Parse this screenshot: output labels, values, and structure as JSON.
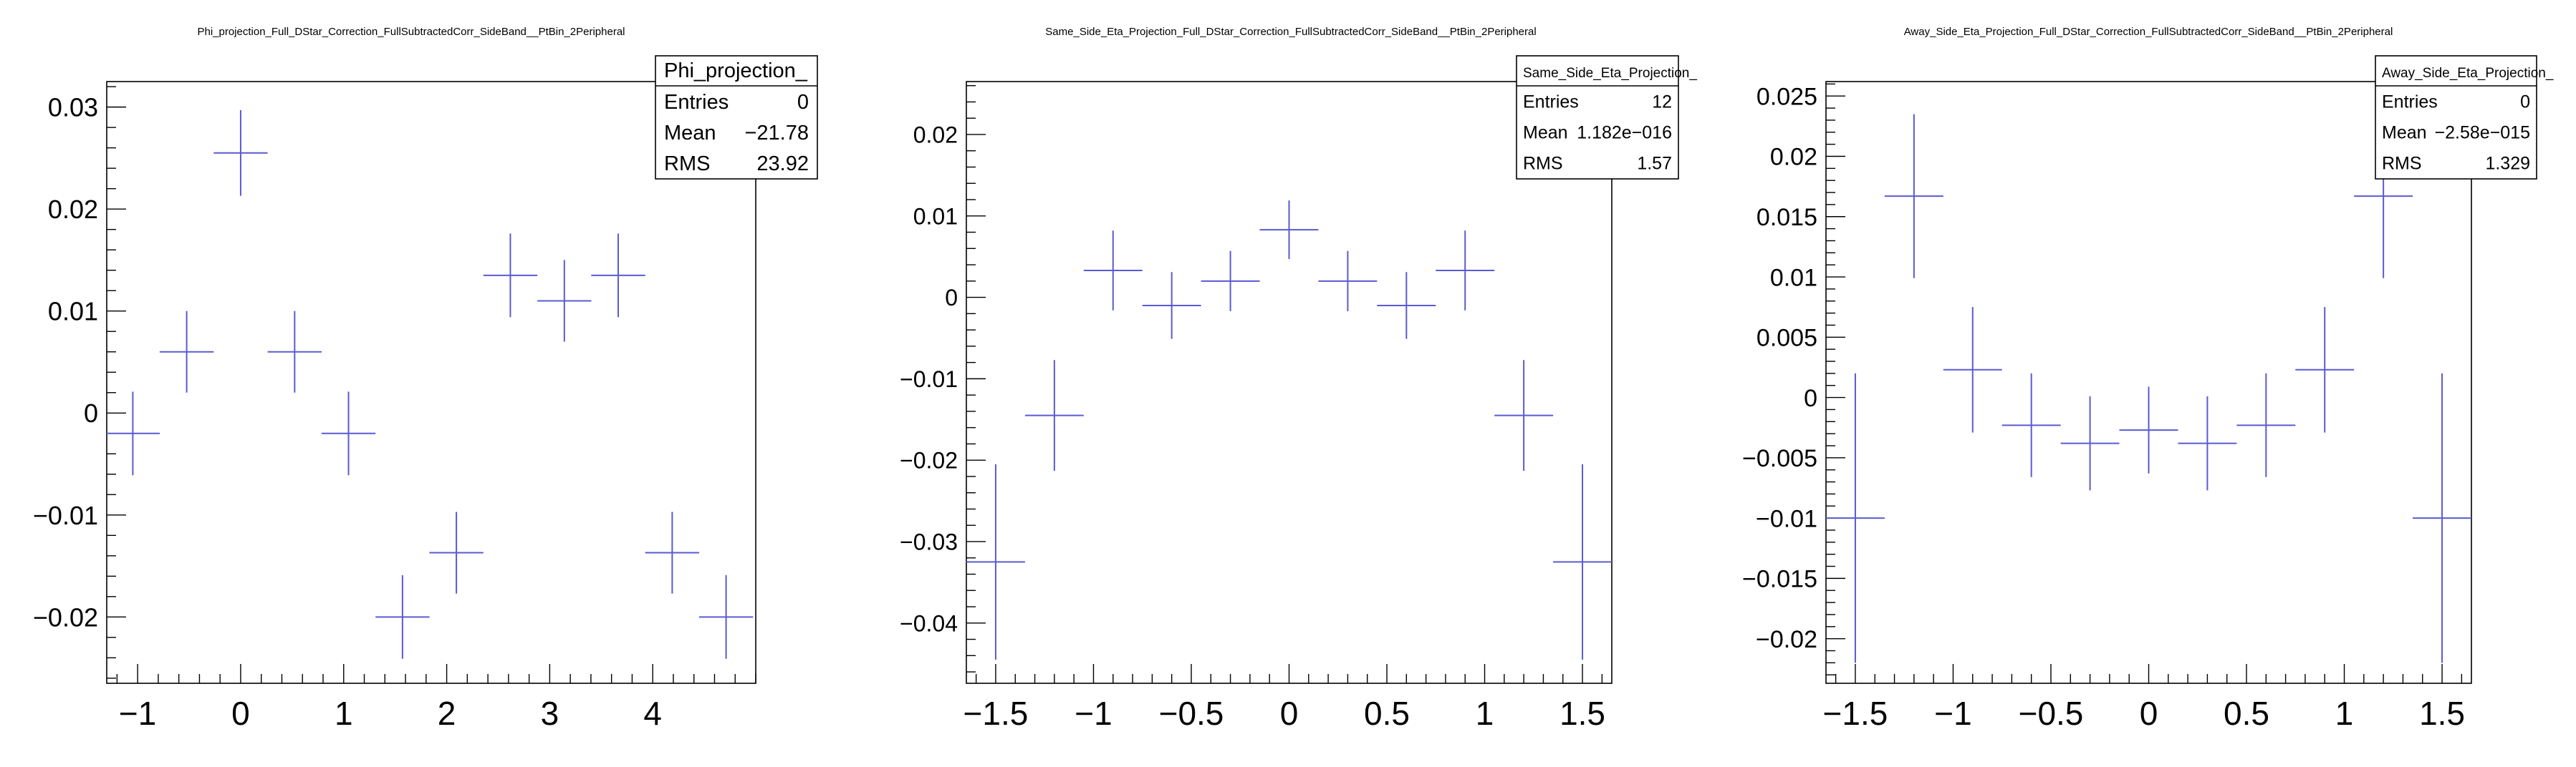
{
  "chart_data": [
    {
      "type": "scatter",
      "title": "Phi_projection_Full_DStar_Correction_FullSubtractedCorr_SideBand__PtBin_2Peripheral",
      "xlabel": "",
      "ylabel": "",
      "xlim": [
        -1.3,
        5.0
      ],
      "ylim": [
        -0.0265,
        0.0325
      ],
      "xticks": [
        -1,
        0,
        1,
        2,
        3,
        4
      ],
      "xtick_labels": [
        "−1",
        "0",
        "1",
        "2",
        "3",
        "4"
      ],
      "yticks": [
        -0.02,
        -0.01,
        0,
        0.01,
        0.02,
        0.03
      ],
      "ytick_labels": [
        "−0.02",
        "−0.01",
        "0",
        "0.01",
        "0.02",
        "0.03"
      ],
      "grid": false,
      "stats": {
        "name": "Phi_projection_",
        "rows": [
          {
            "label": "Entries",
            "value": "0"
          },
          {
            "label": "Mean",
            "value": "−21.78"
          },
          {
            "label": "RMS",
            "value": "23.92"
          }
        ]
      },
      "points": [
        {
          "x": -1.047,
          "y": -0.002,
          "xerr": 0.262,
          "yerr": 0.0041
        },
        {
          "x": -0.524,
          "y": 0.006,
          "xerr": 0.262,
          "yerr": 0.004
        },
        {
          "x": 0.0,
          "y": 0.0255,
          "xerr": 0.262,
          "yerr": 0.0042
        },
        {
          "x": 0.524,
          "y": 0.006,
          "xerr": 0.262,
          "yerr": 0.004
        },
        {
          "x": 1.047,
          "y": -0.002,
          "xerr": 0.262,
          "yerr": 0.0041
        },
        {
          "x": 1.571,
          "y": -0.02,
          "xerr": 0.262,
          "yerr": 0.0041
        },
        {
          "x": 2.094,
          "y": -0.0137,
          "xerr": 0.262,
          "yerr": 0.004
        },
        {
          "x": 2.618,
          "y": 0.0135,
          "xerr": 0.262,
          "yerr": 0.0041
        },
        {
          "x": 3.142,
          "y": 0.011,
          "xerr": 0.262,
          "yerr": 0.004
        },
        {
          "x": 3.665,
          "y": 0.0135,
          "xerr": 0.262,
          "yerr": 0.0041
        },
        {
          "x": 4.189,
          "y": -0.0137,
          "xerr": 0.262,
          "yerr": 0.004
        },
        {
          "x": 4.712,
          "y": -0.02,
          "xerr": 0.262,
          "yerr": 0.0041
        }
      ]
    },
    {
      "type": "scatter",
      "title": "Same_Side_Eta_Projection_Full_DStar_Correction_FullSubtractedCorr_SideBand__PtBin_2Peripheral",
      "xlabel": "",
      "ylabel": "",
      "xlim": [
        -1.65,
        1.65
      ],
      "ylim": [
        -0.0474,
        0.0265
      ],
      "xticks": [
        -1.5,
        -1,
        -0.5,
        0,
        0.5,
        1,
        1.5
      ],
      "xtick_labels": [
        "−1.5",
        "−1",
        "−0.5",
        "0",
        "0.5",
        "1",
        "1.5"
      ],
      "yticks": [
        -0.04,
        -0.03,
        -0.02,
        -0.01,
        0,
        0.01,
        0.02
      ],
      "ytick_labels": [
        "−0.04",
        "−0.03",
        "−0.02",
        "−0.01",
        "0",
        "0.01",
        "0.02"
      ],
      "grid": false,
      "stats": {
        "name": "Same_Side_Eta_Projection_",
        "rows": [
          {
            "label": "Entries",
            "value": "12"
          },
          {
            "label": "Mean",
            "value": "1.182e−016"
          },
          {
            "label": "RMS",
            "value": "1.57"
          }
        ]
      },
      "points": [
        {
          "x": -1.5,
          "y": -0.0325,
          "xerr": 0.15,
          "yerr": 0.012
        },
        {
          "x": -1.2,
          "y": -0.0145,
          "xerr": 0.15,
          "yerr": 0.0068
        },
        {
          "x": -0.9,
          "y": 0.0033,
          "xerr": 0.15,
          "yerr": 0.0049
        },
        {
          "x": -0.6,
          "y": -0.001,
          "xerr": 0.15,
          "yerr": 0.0041
        },
        {
          "x": -0.3,
          "y": 0.002,
          "xerr": 0.15,
          "yerr": 0.0037
        },
        {
          "x": 0.0,
          "y": 0.0083,
          "xerr": 0.15,
          "yerr": 0.0036
        },
        {
          "x": 0.3,
          "y": 0.002,
          "xerr": 0.15,
          "yerr": 0.0037
        },
        {
          "x": 0.6,
          "y": -0.001,
          "xerr": 0.15,
          "yerr": 0.0041
        },
        {
          "x": 0.9,
          "y": 0.0033,
          "xerr": 0.15,
          "yerr": 0.0049
        },
        {
          "x": 1.2,
          "y": -0.0145,
          "xerr": 0.15,
          "yerr": 0.0068
        },
        {
          "x": 1.5,
          "y": -0.0325,
          "xerr": 0.15,
          "yerr": 0.012
        }
      ]
    },
    {
      "type": "scatter",
      "title": "Away_Side_Eta_Projection_Full_DStar_Correction_FullSubtractedCorr_SideBand__PtBin_2Peripheral",
      "xlabel": "",
      "ylabel": "",
      "xlim": [
        -1.65,
        1.65
      ],
      "ylim": [
        -0.0237,
        0.0262
      ],
      "xticks": [
        -1.5,
        -1,
        -0.5,
        0,
        0.5,
        1,
        1.5
      ],
      "xtick_labels": [
        "−1.5",
        "−1",
        "−0.5",
        "0",
        "0.5",
        "1",
        "1.5"
      ],
      "yticks": [
        -0.02,
        -0.015,
        -0.01,
        -0.005,
        0,
        0.005,
        0.01,
        0.015,
        0.02,
        0.025
      ],
      "ytick_labels": [
        "−0.02",
        "−0.015",
        "−0.01",
        "−0.005",
        "0",
        "0.005",
        "0.01",
        "0.015",
        "0.02",
        "0.025"
      ],
      "grid": false,
      "stats": {
        "name": "Away_Side_Eta_Projection_",
        "rows": [
          {
            "label": "Entries",
            "value": "0"
          },
          {
            "label": "Mean",
            "value": "−2.58e−015"
          },
          {
            "label": "RMS",
            "value": "1.329"
          }
        ]
      },
      "points": [
        {
          "x": -1.5,
          "y": -0.01,
          "xerr": 0.15,
          "yerr": 0.012
        },
        {
          "x": -1.2,
          "y": 0.0167,
          "xerr": 0.15,
          "yerr": 0.0068
        },
        {
          "x": -0.9,
          "y": 0.0023,
          "xerr": 0.15,
          "yerr": 0.0052
        },
        {
          "x": -0.6,
          "y": -0.0023,
          "xerr": 0.15,
          "yerr": 0.0043
        },
        {
          "x": -0.3,
          "y": -0.0038,
          "xerr": 0.15,
          "yerr": 0.0039
        },
        {
          "x": 0.0,
          "y": -0.0027,
          "xerr": 0.15,
          "yerr": 0.0036
        },
        {
          "x": 0.3,
          "y": -0.0038,
          "xerr": 0.15,
          "yerr": 0.0039
        },
        {
          "x": 0.6,
          "y": -0.0023,
          "xerr": 0.15,
          "yerr": 0.0043
        },
        {
          "x": 0.9,
          "y": 0.0023,
          "xerr": 0.15,
          "yerr": 0.0052
        },
        {
          "x": 1.2,
          "y": 0.0167,
          "xerr": 0.15,
          "yerr": 0.0068
        },
        {
          "x": 1.5,
          "y": -0.01,
          "xerr": 0.15,
          "yerr": 0.012
        }
      ]
    }
  ],
  "colors": {
    "marker": "#5a5ad2",
    "axis": "#000000",
    "background": "#ffffff"
  }
}
